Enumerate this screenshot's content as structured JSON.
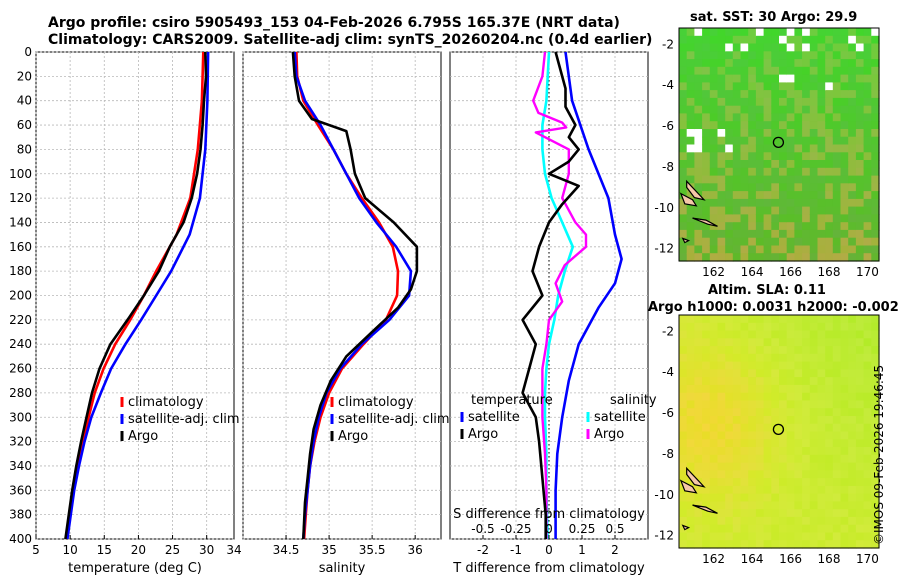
{
  "header": {
    "line1": "Argo profile: csiro 5905493_153 04-Feb-2026 6.795S 165.37E (NRT data)",
    "line2": "Climatology: CARS2009. Satellite-adj clim: synTS_20260204.nc (0.4d earlier)"
  },
  "colors": {
    "climatology": "#ff0000",
    "satellite": "#0000ff",
    "argo": "#000000",
    "sat_salinity": "#00ffff",
    "argo_salinity": "#ff00ff"
  },
  "chart_data": [
    {
      "type": "line",
      "title": "",
      "xlabel": "temperature (deg C)",
      "ylabel": "",
      "xlim": [
        5,
        34
      ],
      "ylim": [
        0,
        400
      ],
      "xticks": [
        5,
        10,
        15,
        20,
        25,
        30
      ],
      "yticks": [
        0,
        20,
        40,
        60,
        80,
        100,
        120,
        140,
        160,
        180,
        200,
        220,
        240,
        260,
        280,
        300,
        320,
        340,
        360,
        380,
        400
      ],
      "legend": [
        "climatology",
        "satellite-adj. clim",
        "Argo"
      ],
      "series": [
        {
          "name": "climatology",
          "depth": [
            0,
            40,
            80,
            120,
            150,
            180,
            200,
            220,
            240,
            260,
            280,
            300,
            320,
            340,
            360,
            380,
            400
          ],
          "values": [
            29.5,
            29.3,
            28.7,
            27.6,
            25.6,
            22.6,
            20.8,
            18.8,
            16.6,
            14.9,
            13.6,
            12.7,
            11.9,
            11.1,
            10.5,
            9.9,
            9.4
          ]
        },
        {
          "name": "satellite-adj. clim",
          "depth": [
            0,
            40,
            80,
            120,
            150,
            180,
            200,
            220,
            240,
            260,
            280,
            300,
            320,
            340,
            360,
            380,
            400
          ],
          "values": [
            30.2,
            30.1,
            29.8,
            29.0,
            27.5,
            24.8,
            22.6,
            20.4,
            18.1,
            16.0,
            14.5,
            13.1,
            12.1,
            11.3,
            10.6,
            10.1,
            9.6
          ]
        },
        {
          "name": "Argo",
          "depth": [
            0,
            20,
            40,
            60,
            80,
            100,
            120,
            140,
            160,
            180,
            200,
            220,
            240,
            260,
            280,
            300,
            320,
            340,
            360,
            380,
            400
          ],
          "values": [
            29.8,
            29.9,
            29.6,
            29.4,
            29.1,
            28.6,
            27.8,
            26.6,
            24.6,
            23.0,
            20.8,
            18.4,
            15.9,
            14.3,
            13.2,
            12.4,
            11.6,
            10.9,
            10.3,
            9.8,
            9.3
          ]
        }
      ]
    },
    {
      "type": "line",
      "xlabel": "salinity",
      "xlim": [
        34,
        36.3
      ],
      "ylim": [
        0,
        400
      ],
      "xticks": [
        34,
        34.5,
        35,
        35.5,
        36
      ],
      "legend": [
        "climatology",
        "satellite-adj. clim",
        "Argo"
      ],
      "series": [
        {
          "name": "climatology",
          "depth": [
            0,
            20,
            40,
            60,
            80,
            100,
            120,
            140,
            160,
            180,
            200,
            220,
            240,
            260,
            280,
            300,
            320,
            340,
            360,
            380,
            400
          ],
          "values": [
            34.62,
            34.63,
            34.7,
            34.87,
            35.05,
            35.2,
            35.38,
            35.58,
            35.74,
            35.8,
            35.79,
            35.66,
            35.4,
            35.15,
            35.0,
            34.9,
            34.83,
            34.78,
            34.75,
            34.73,
            34.71
          ]
        },
        {
          "name": "satellite-adj. clim",
          "depth": [
            0,
            20,
            40,
            60,
            80,
            100,
            120,
            140,
            160,
            180,
            200,
            220,
            240,
            260,
            280,
            300,
            320,
            340,
            360,
            380,
            400
          ],
          "values": [
            34.6,
            34.62,
            34.72,
            34.9,
            35.05,
            35.2,
            35.35,
            35.55,
            35.78,
            35.95,
            35.93,
            35.7,
            35.38,
            35.13,
            34.97,
            34.88,
            34.82,
            34.78,
            34.75,
            34.72,
            34.7
          ]
        },
        {
          "name": "Argo",
          "depth": [
            0,
            20,
            40,
            55,
            65,
            80,
            100,
            120,
            140,
            160,
            180,
            195,
            210,
            230,
            250,
            270,
            290,
            310,
            330,
            350,
            370,
            400
          ],
          "values": [
            34.58,
            34.6,
            34.65,
            34.8,
            35.2,
            35.25,
            35.3,
            35.42,
            35.75,
            36.02,
            36.02,
            35.95,
            35.8,
            35.5,
            35.2,
            35.02,
            34.9,
            34.82,
            34.78,
            34.75,
            34.72,
            34.7
          ]
        }
      ]
    },
    {
      "type": "line",
      "xlabel": "T difference from climatology",
      "xlabel_top": "S difference from climatology",
      "xlim": [
        -3,
        3
      ],
      "xlim_top": [
        -0.75,
        0.75
      ],
      "ylim": [
        0,
        400
      ],
      "xticks": [
        -2,
        -1,
        0,
        1,
        2
      ],
      "xticks_top": [
        "-0.5",
        "-0.25",
        "0",
        "0.25",
        "0.5"
      ],
      "legend_temperature": {
        "title": "temperature",
        "items": [
          "satellite",
          "Argo"
        ]
      },
      "legend_salinity": {
        "title": "salinity",
        "items": [
          "satellite",
          "Argo"
        ]
      },
      "series": [
        {
          "name": "temperature satellite",
          "depth": [
            0,
            40,
            80,
            100,
            120,
            150,
            170,
            190,
            210,
            240,
            270,
            300,
            330,
            360,
            400
          ],
          "values": [
            0.5,
            0.7,
            1.2,
            1.5,
            1.8,
            2.0,
            2.2,
            2.0,
            1.5,
            0.9,
            0.6,
            0.4,
            0.25,
            0.2,
            0.2
          ]
        },
        {
          "name": "temperature Argo",
          "depth": [
            0,
            30,
            45,
            60,
            70,
            80,
            90,
            100,
            110,
            125,
            140,
            160,
            180,
            200,
            220,
            240,
            260,
            280,
            300,
            320,
            350,
            380,
            400
          ],
          "values": [
            0.2,
            0.5,
            0.5,
            0.8,
            0.6,
            0.9,
            0.6,
            0.0,
            0.9,
            0.4,
            0.0,
            -0.3,
            -0.5,
            -0.2,
            -0.8,
            -0.4,
            -0.6,
            -0.8,
            -0.4,
            -0.3,
            -0.2,
            -0.1,
            -0.1
          ]
        },
        {
          "name": "salinity satellite",
          "depth": [
            0,
            40,
            60,
            80,
            100,
            120,
            140,
            160,
            180,
            200,
            220,
            240,
            260,
            280,
            300,
            330,
            360,
            400
          ],
          "values": [
            0.0,
            -0.02,
            -0.05,
            -0.05,
            -0.03,
            0.02,
            0.1,
            0.18,
            0.12,
            0.07,
            0.04,
            0.0,
            -0.02,
            -0.03,
            -0.03,
            -0.02,
            -0.02,
            -0.01
          ]
        },
        {
          "name": "salinity Argo",
          "depth": [
            0,
            20,
            40,
            50,
            58,
            62,
            66,
            80,
            100,
            120,
            140,
            150,
            160,
            175,
            190,
            205,
            220,
            240,
            260,
            280,
            300,
            330,
            360,
            400
          ],
          "values": [
            -0.03,
            -0.05,
            -0.12,
            -0.08,
            0.1,
            0.13,
            -0.1,
            0.15,
            0.15,
            0.1,
            0.2,
            0.28,
            0.28,
            0.12,
            0.05,
            0.1,
            0.0,
            -0.02,
            -0.05,
            -0.05,
            -0.05,
            -0.03,
            -0.02,
            -0.02
          ]
        }
      ]
    },
    {
      "type": "heatmap",
      "title": "sat. SST: 30 Argo: 29.9",
      "xlim": [
        160.2,
        170.6
      ],
      "ylim": [
        -12.6,
        -1.2
      ],
      "xticks": [
        162,
        164,
        166,
        168,
        170
      ],
      "yticks": [
        -2,
        -4,
        -6,
        -8,
        -10,
        -12
      ],
      "marker": {
        "lon": 165.37,
        "lat": -6.795
      }
    },
    {
      "type": "heatmap",
      "title_line1": "Altim. SLA: 0.11",
      "title_line2": "Argo h1000: 0.0031 h2000: -0.002",
      "xlim": [
        160.2,
        170.6
      ],
      "ylim": [
        -12.6,
        -1.2
      ],
      "xticks": [
        162,
        164,
        166,
        168,
        170
      ],
      "yticks": [
        -2,
        -4,
        -6,
        -8,
        -10,
        -12
      ],
      "marker": {
        "lon": 165.37,
        "lat": -6.795
      }
    }
  ],
  "footer": {
    "stamp": "©IMOS 09-Feb-2026 19:46:45"
  }
}
